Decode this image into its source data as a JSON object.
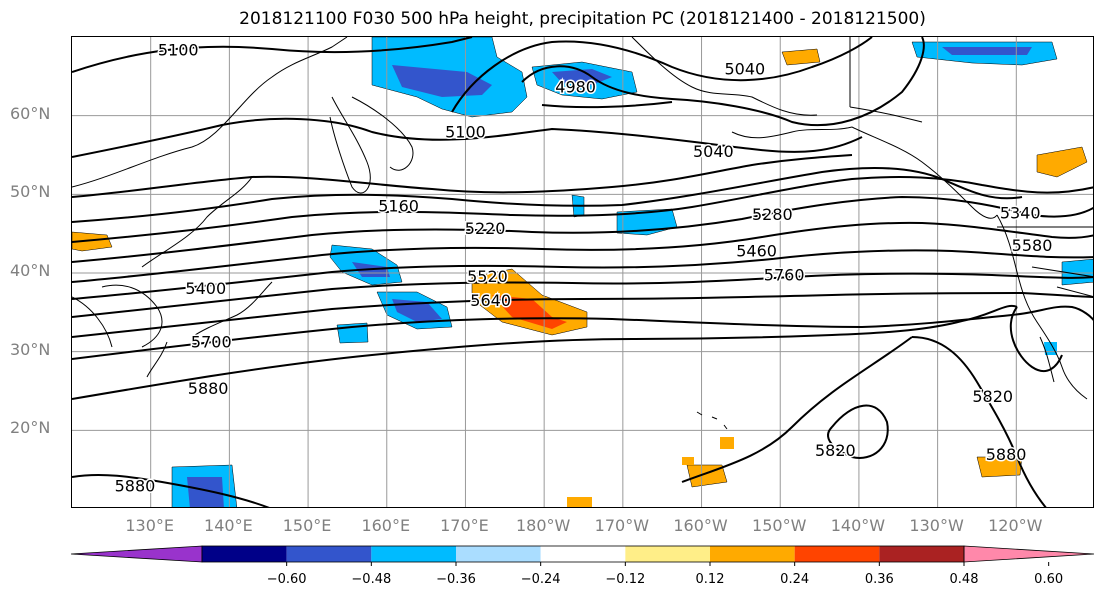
{
  "title": "2018121100 F030 500 hPa height, precipitation PC (2018121400 - 2018121500)",
  "lat_labels": [
    {
      "text": "60°N",
      "lat": 60
    },
    {
      "text": "50°N",
      "lat": 50
    },
    {
      "text": "40°N",
      "lat": 40
    },
    {
      "text": "30°N",
      "lat": 30
    },
    {
      "text": "20°N",
      "lat": 20
    }
  ],
  "lon_labels": [
    {
      "text": "130°E",
      "lon": 130
    },
    {
      "text": "140°E",
      "lon": 140
    },
    {
      "text": "150°E",
      "lon": 150
    },
    {
      "text": "160°E",
      "lon": 160
    },
    {
      "text": "170°E",
      "lon": 170
    },
    {
      "text": "180°W",
      "lon": 180
    },
    {
      "text": "170°W",
      "lon": 190
    },
    {
      "text": "160°W",
      "lon": 200
    },
    {
      "text": "150°W",
      "lon": 210
    },
    {
      "text": "140°W",
      "lon": 220
    },
    {
      "text": "130°W",
      "lon": 230
    },
    {
      "text": "120°W",
      "lon": 240
    }
  ],
  "extent": {
    "lon_min": 120,
    "lon_max": 250,
    "lat_min": 10,
    "lat_max": 70
  },
  "colorbar": {
    "colors": [
      "#9933cc",
      "#000088",
      "#3355cc",
      "#00bbff",
      "#aaddff",
      "#ffffff",
      "#ffee88",
      "#ffaa00",
      "#ff4400",
      "#aa2222",
      "#ff88aa"
    ],
    "ticks": [
      "−0.60",
      "−0.48",
      "−0.36",
      "−0.24",
      "−0.12",
      "0.12",
      "0.24",
      "0.36",
      "0.48",
      "0.60"
    ]
  },
  "contour_labels": [
    {
      "text": "5100",
      "lon": 133.5,
      "lat": 68.2
    },
    {
      "text": "4980",
      "lon": 184,
      "lat": 63.5
    },
    {
      "text": "5040",
      "lon": 205.5,
      "lat": 65.8
    },
    {
      "text": "5100",
      "lon": 170,
      "lat": 57.8
    },
    {
      "text": "5040",
      "lon": 201.5,
      "lat": 55.3
    },
    {
      "text": "5160",
      "lon": 161.5,
      "lat": 48.4
    },
    {
      "text": "5220",
      "lon": 172.5,
      "lat": 45.5
    },
    {
      "text": "5280",
      "lon": 209,
      "lat": 47.3
    },
    {
      "text": "5340",
      "lon": 240.5,
      "lat": 47.5
    },
    {
      "text": "5460",
      "lon": 207,
      "lat": 42.7
    },
    {
      "text": "5580",
      "lon": 242,
      "lat": 43.4
    },
    {
      "text": "5400",
      "lon": 137,
      "lat": 37.9
    },
    {
      "text": "5520",
      "lon": 172.8,
      "lat": 39.4
    },
    {
      "text": "5640",
      "lon": 173.2,
      "lat": 36.4
    },
    {
      "text": "5760",
      "lon": 210.5,
      "lat": 39.6
    },
    {
      "text": "5700",
      "lon": 137.7,
      "lat": 31.1
    },
    {
      "text": "5880",
      "lon": 137.3,
      "lat": 25.2
    },
    {
      "text": "5820",
      "lon": 237,
      "lat": 24.2
    },
    {
      "text": "5820",
      "lon": 217,
      "lat": 17.3
    },
    {
      "text": "5880",
      "lon": 238.7,
      "lat": 16.8
    },
    {
      "text": "5880",
      "lon": 128,
      "lat": 12.8
    }
  ]
}
